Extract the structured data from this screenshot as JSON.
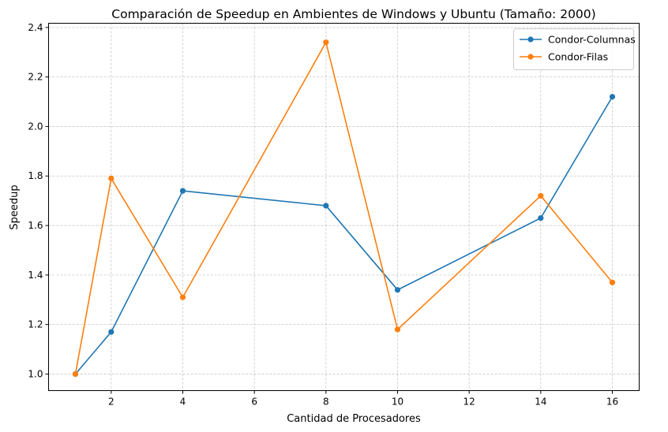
{
  "chart_data": {
    "type": "line",
    "title": "Comparación de Speedup en Ambientes de Windows y Ubuntu (Tamaño: 2000)",
    "xlabel": "Cantidad de Procesadores",
    "ylabel": "Speedup",
    "xlim": [
      0.25,
      16.75
    ],
    "ylim": [
      0.933,
      2.417
    ],
    "xticks": [
      2,
      4,
      6,
      8,
      10,
      12,
      14,
      16
    ],
    "yticks": [
      1.0,
      1.2,
      1.4,
      1.6,
      1.8,
      2.0,
      2.2,
      2.4
    ],
    "ytick_labels": [
      "1.0",
      "1.2",
      "1.4",
      "1.6",
      "1.8",
      "2.0",
      "2.2",
      "2.4"
    ],
    "grid": true,
    "legend_position": "top-right",
    "x": [
      1,
      2,
      4,
      8,
      10,
      14,
      16
    ],
    "series": [
      {
        "name": "Condor-Columnas",
        "color": "#1f77b4",
        "marker": "circle",
        "values": [
          1.0,
          1.17,
          1.74,
          1.68,
          1.34,
          1.63,
          2.12
        ]
      },
      {
        "name": "Condor-Filas",
        "color": "#ff7f0e",
        "marker": "circle",
        "values": [
          1.0,
          1.79,
          1.31,
          2.34,
          1.18,
          1.72,
          1.37
        ]
      }
    ]
  }
}
